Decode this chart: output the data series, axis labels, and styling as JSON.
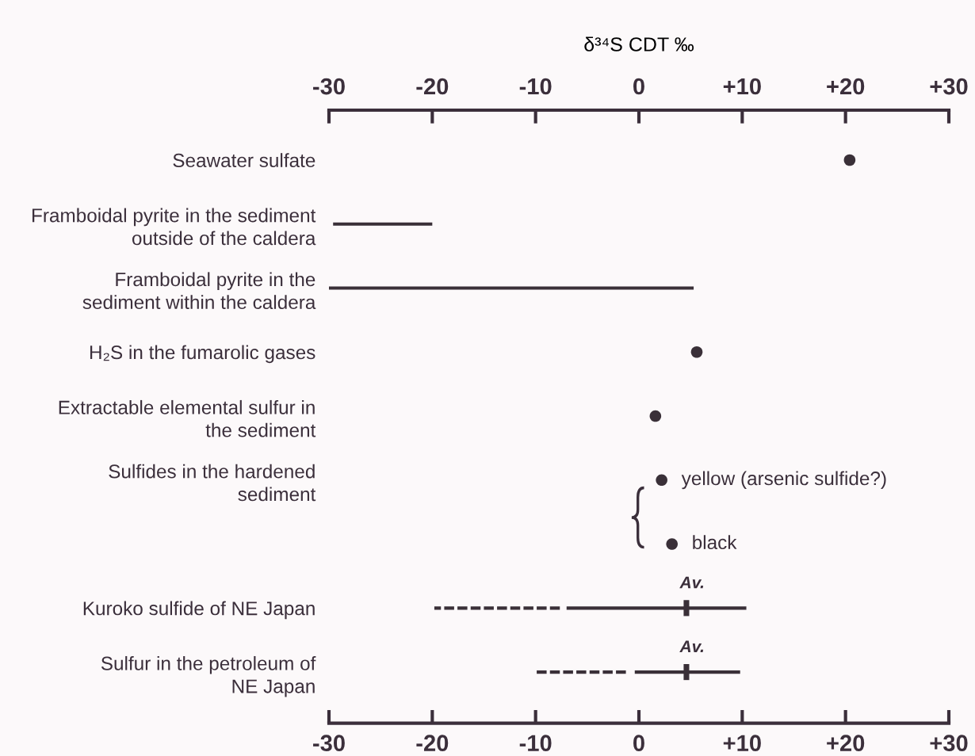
{
  "chart_data": {
    "type": "bar",
    "orientation": "horizontal",
    "x2label": "δ³⁴S CDT ‰",
    "categories": [
      "Seawater sulfate",
      "Framboidal pyrite in the sediment\noutside of the caldera",
      "Framboidal pyrite in the\nsediment within the caldera",
      "H₂S in the fumarolic gases",
      "Extractable elemental sulfur in\nthe sediment",
      "Sulfides in the hardened\nsediment",
      null,
      "Kuroko sulfide of NE Japan",
      "Sulfur in the petroleum of\nNE Japan"
    ],
    "series": [
      {
        "color": "#3a3038",
        "line_style": "solid",
        "base": [
          null,
          -29.6,
          -30,
          null,
          null,
          null,
          null,
          -7,
          -0.4
        ],
        "values": [
          null,
          9.6,
          35.3,
          null,
          null,
          null,
          null,
          17.4,
          10.2
        ]
      },
      {
        "color": "#3a3038",
        "line_style": "dashed",
        "base": [
          null,
          null,
          null,
          null,
          null,
          null,
          null,
          -19.8,
          -10
        ],
        "values": [
          null,
          null,
          null,
          null,
          null,
          null,
          null,
          12.4,
          9
        ]
      },
      {
        "type": "scatter",
        "color": "#3a3038",
        "marker": "circle",
        "values": [
          20.4,
          null,
          null,
          5.6,
          1.6,
          null,
          null,
          null,
          null
        ]
      },
      {
        "type": "scatter",
        "name": "yellow (arsenic sulfide?)",
        "color": "#3a3038",
        "marker": "circle",
        "values": [
          null,
          null,
          null,
          null,
          null,
          2.2,
          null,
          null,
          null
        ]
      },
      {
        "type": "scatter",
        "name": "black",
        "color": "#3a3038",
        "marker": "circle",
        "values": [
          null,
          null,
          null,
          null,
          null,
          null,
          3.2,
          null,
          null
        ]
      },
      {
        "type": "scatter",
        "color": "#3a3038",
        "marker": "square",
        "values": [
          null,
          null,
          null,
          null,
          null,
          null,
          null,
          4.6,
          4.6
        ]
      }
    ],
    "annotations": [
      {
        "text": "Av.",
        "x": 4.6,
        "y": "Kuroko sulfide of NE Japan"
      },
      {
        "text": "Av.",
        "x": 4.6,
        "y": "Sulfur in the petroleum of\nNE Japan"
      }
    ],
    "xlim": [
      -30,
      30
    ],
    "xticks": [
      -30,
      -20,
      -10,
      0,
      {
        "value": 10,
        "label": "+10"
      },
      {
        "value": 20,
        "label": "+20"
      },
      {
        "value": 30,
        "label": "+30"
      }
    ],
    "x2lim": [
      -30,
      30
    ],
    "x2ticks": [
      -30,
      -20,
      -10,
      0,
      {
        "value": 10,
        "label": "+10"
      },
      {
        "value": 20,
        "label": "+20"
      },
      {
        "value": 30,
        "label": "+30"
      }
    ]
  }
}
